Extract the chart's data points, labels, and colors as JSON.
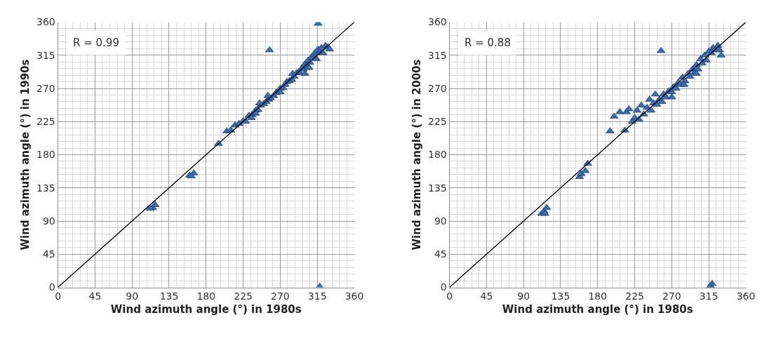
{
  "chart_data": [
    {
      "type": "scatter",
      "xlabel": "Wind azimuth angle (°) in 1980s",
      "ylabel": "Wind azimuth angle (°) in 1990s",
      "annotations": [
        "R = 0.99"
      ],
      "xlim": [
        0,
        360
      ],
      "ylim": [
        0,
        360
      ],
      "xticks": [
        0,
        45,
        90,
        135,
        180,
        225,
        270,
        315,
        360
      ],
      "yticks": [
        0,
        45,
        90,
        135,
        180,
        225,
        270,
        315,
        360
      ],
      "grid": true,
      "marker": "triangle",
      "series": [
        {
          "color": "#3b6db3",
          "x": [
            115,
            118,
            112,
            160,
            165,
            162,
            195,
            205,
            210,
            215,
            220,
            225,
            228,
            232,
            236,
            240,
            243,
            246,
            250,
            253,
            256,
            258,
            262,
            265,
            268,
            270,
            273,
            276,
            278,
            281,
            284,
            287,
            290,
            293,
            296,
            298,
            300,
            302,
            304,
            306,
            308,
            310,
            312,
            314,
            316,
            318,
            320,
            322,
            325,
            328,
            330,
            300,
            305,
            285,
            270,
            255,
            257,
            316,
            318,
            240,
            245,
            235
          ],
          "values": [
            108,
            112,
            107,
            152,
            155,
            151,
            195,
            212,
            213,
            220,
            222,
            226,
            225,
            233,
            234,
            240,
            241,
            247,
            249,
            252,
            255,
            257,
            260,
            264,
            266,
            270,
            271,
            275,
            279,
            280,
            282,
            286,
            291,
            292,
            297,
            296,
            303,
            300,
            308,
            305,
            312,
            315,
            318,
            310,
            323,
            320,
            325,
            318,
            328,
            326,
            323,
            290,
            298,
            290,
            265,
            260,
            322,
            358,
            1,
            236,
            250,
            230
          ]
        },
        {
          "type": "line",
          "color": "#000000",
          "marker": "none",
          "x": [
            0,
            360
          ],
          "values": [
            0,
            360
          ]
        }
      ]
    },
    {
      "type": "scatter",
      "xlabel": "Wind azimuth angle (°) in 1980s",
      "ylabel": "Wind azimuth angle (°) in 2000s",
      "annotations": [
        "R = 0.88"
      ],
      "xlim": [
        0,
        360
      ],
      "ylim": [
        0,
        360
      ],
      "xticks": [
        0,
        45,
        90,
        135,
        180,
        225,
        270,
        315,
        360
      ],
      "yticks": [
        0,
        45,
        90,
        135,
        180,
        225,
        270,
        315,
        360
      ],
      "grid": true,
      "marker": "triangle",
      "series": [
        {
          "color": "#3b6db3",
          "x": [
            112,
            115,
            118,
            116,
            158,
            160,
            165,
            168,
            195,
            200,
            207,
            213,
            215,
            218,
            222,
            225,
            228,
            230,
            233,
            236,
            240,
            243,
            245,
            248,
            250,
            252,
            255,
            258,
            260,
            263,
            266,
            270,
            272,
            275,
            278,
            280,
            283,
            286,
            290,
            292,
            295,
            298,
            300,
            302,
            305,
            307,
            310,
            312,
            315,
            318,
            320,
            323,
            326,
            328,
            330,
            257,
            317,
            319,
            270,
            285,
            300
          ],
          "values": [
            100,
            103,
            108,
            100,
            150,
            154,
            158,
            168,
            212,
            232,
            238,
            213,
            238,
            242,
            225,
            230,
            240,
            228,
            247,
            235,
            244,
            255,
            240,
            250,
            262,
            248,
            255,
            252,
            262,
            258,
            266,
            265,
            272,
            270,
            278,
            275,
            285,
            280,
            290,
            286,
            296,
            292,
            302,
            296,
            310,
            304,
            315,
            308,
            320,
            318,
            325,
            322,
            328,
            322,
            315,
            321,
            2,
            5,
            258,
            275,
            290
          ]
        },
        {
          "type": "line",
          "color": "#000000",
          "marker": "none",
          "x": [
            0,
            360
          ],
          "values": [
            0,
            360
          ]
        }
      ]
    }
  ]
}
